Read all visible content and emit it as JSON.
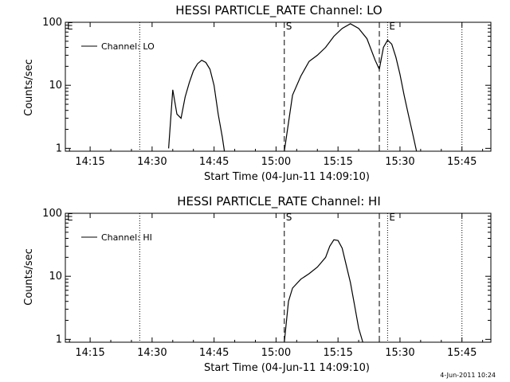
{
  "footer": {
    "timestamp": "4-Jun-2011 10:24"
  },
  "chart_data": [
    {
      "type": "line",
      "title": "HESSI PARTICLE_RATE Channel: LO",
      "xlabel": "Start Time (04-Jun-11 14:09:10)",
      "ylabel": "Counts/sec",
      "yscale": "log",
      "xlim": [
        "14:09",
        "15:52"
      ],
      "ylim": [
        0.9,
        100
      ],
      "xticks": [
        "14:15",
        "14:30",
        "14:45",
        "15:00",
        "15:15",
        "15:30",
        "15:45"
      ],
      "yticks": [
        "1",
        "10",
        "100"
      ],
      "legend": {
        "label": "Channel: LO",
        "position": "top-left"
      },
      "markers": [
        {
          "label": "E",
          "time": "14:09",
          "style": "dotted"
        },
        {
          "label": "",
          "time": "14:27",
          "style": "dotted"
        },
        {
          "label": "S",
          "time": "15:02",
          "style": "dashed"
        },
        {
          "label": "",
          "time": "15:25",
          "style": "dashed"
        },
        {
          "label": "E",
          "time": "15:27",
          "style": "dotted"
        },
        {
          "label": "",
          "time": "15:45",
          "style": "dotted"
        }
      ],
      "series": [
        {
          "segments": [
            {
              "x": [
                "14:34",
                "14:35",
                "14:36",
                "14:37",
                "14:38",
                "14:39",
                "14:40",
                "14:41",
                "14:42",
                "14:43",
                "14:44",
                "14:45",
                "14:46",
                "14:47",
                "14:47.5"
              ],
              "y": [
                1,
                8.5,
                3.5,
                3.0,
                6.5,
                11,
                17,
                22,
                25,
                23,
                18,
                10,
                3.5,
                1.5,
                0.9
              ]
            },
            {
              "x": [
                "15:02",
                "15:04",
                "15:06",
                "15:08",
                "15:10",
                "15:12",
                "15:14",
                "15:16",
                "15:18",
                "15:20",
                "15:22",
                "15:24",
                "15:25",
                "15:26",
                "15:27",
                "15:28",
                "15:29",
                "15:30",
                "15:31",
                "15:32",
                "15:33",
                "15:34"
              ],
              "y": [
                0.9,
                7,
                14,
                24,
                30,
                40,
                60,
                80,
                95,
                80,
                55,
                25,
                18,
                40,
                52,
                45,
                28,
                15,
                7,
                3.5,
                1.8,
                0.9
              ]
            }
          ]
        }
      ]
    },
    {
      "type": "line",
      "title": "HESSI PARTICLE_RATE Channel: HI",
      "xlabel": "Start Time (04-Jun-11 14:09:10)",
      "ylabel": "Counts/sec",
      "yscale": "log",
      "xlim": [
        "14:09",
        "15:52"
      ],
      "ylim": [
        0.9,
        100
      ],
      "xticks": [
        "14:15",
        "14:30",
        "14:45",
        "15:00",
        "15:15",
        "15:30",
        "15:45"
      ],
      "yticks": [
        "1",
        "10",
        "100"
      ],
      "legend": {
        "label": "Channel: HI",
        "position": "top-left"
      },
      "markers": [
        {
          "label": "E",
          "time": "14:09",
          "style": "dotted"
        },
        {
          "label": "",
          "time": "14:27",
          "style": "dotted"
        },
        {
          "label": "S",
          "time": "15:02",
          "style": "dashed"
        },
        {
          "label": "",
          "time": "15:25",
          "style": "dashed"
        },
        {
          "label": "E",
          "time": "15:27",
          "style": "dotted"
        },
        {
          "label": "",
          "time": "15:45",
          "style": "dotted"
        }
      ],
      "series": [
        {
          "segments": [
            {
              "x": [
                "15:02",
                "15:03",
                "15:04",
                "15:06",
                "15:08",
                "15:10",
                "15:12",
                "15:13",
                "15:14",
                "15:15",
                "15:16",
                "15:17",
                "15:18",
                "15:19",
                "15:20",
                "15:21"
              ],
              "y": [
                0.9,
                4,
                6.5,
                9,
                11,
                14,
                20,
                30,
                38,
                37,
                28,
                15,
                8,
                3.5,
                1.5,
                0.9
              ]
            }
          ]
        }
      ]
    }
  ]
}
